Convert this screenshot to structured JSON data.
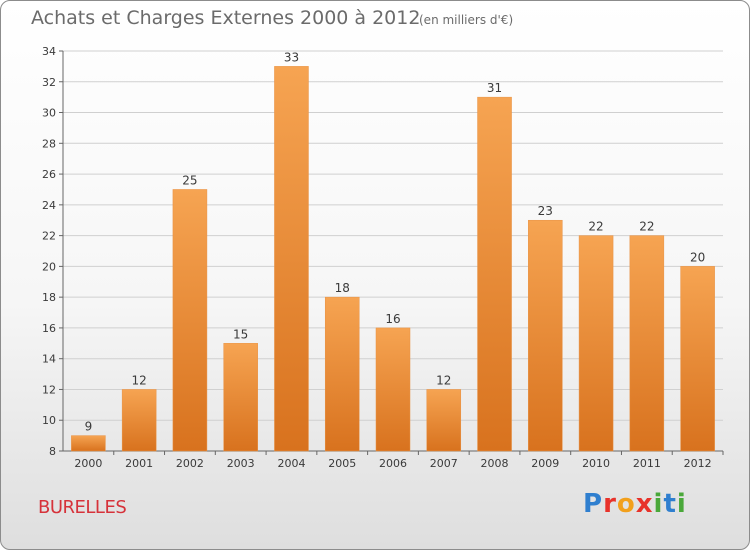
{
  "header": {
    "title": "Achats et Charges Externes 2000 à 2012",
    "unit": "(en milliers d'€)"
  },
  "footer": {
    "commune": "BURELLES",
    "logo": "Proxiti"
  },
  "colors": {
    "bar_light": "#f6a452",
    "bar_dark": "#d8721e",
    "grid": "#d0d0d0",
    "commune": "#d6323a"
  },
  "chart_data": {
    "type": "bar",
    "categories": [
      "2000",
      "2001",
      "2002",
      "2003",
      "2004",
      "2005",
      "2006",
      "2007",
      "2008",
      "2009",
      "2010",
      "2011",
      "2012"
    ],
    "values": [
      9,
      12,
      25,
      15,
      33,
      18,
      16,
      12,
      31,
      23,
      22,
      22,
      20
    ],
    "ylim": [
      8,
      34
    ],
    "yticks": [
      8,
      10,
      12,
      14,
      16,
      18,
      20,
      22,
      24,
      26,
      28,
      30,
      32,
      34
    ],
    "grid": true,
    "legend": "none"
  }
}
